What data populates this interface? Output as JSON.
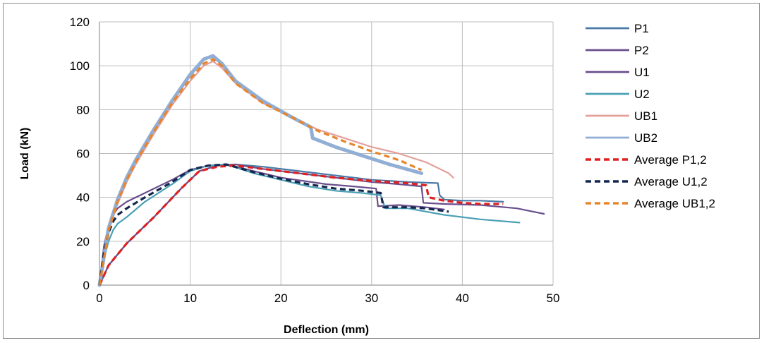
{
  "chart_data": {
    "type": "line",
    "title": "",
    "xlabel": "Deflection (mm)",
    "ylabel": "Load (kN)",
    "xlim": [
      0,
      50
    ],
    "ylim": [
      0,
      120
    ],
    "xticks": [
      0,
      10,
      20,
      30,
      40,
      50
    ],
    "yticks": [
      0,
      20,
      40,
      60,
      80,
      100,
      120
    ],
    "grid": "vertical and horizontal major gridlines",
    "legend": "right",
    "series": [
      {
        "name": "P1",
        "color": "#4a7aa7",
        "dash": "solid",
        "x": [
          0,
          1,
          3,
          6,
          9,
          11,
          13,
          15,
          18,
          22,
          26,
          30,
          34,
          37.3,
          37.5,
          38,
          40,
          42,
          44.5
        ],
        "y": [
          0,
          9,
          19,
          31,
          44,
          52,
          54.5,
          55,
          54,
          52,
          50,
          48,
          47,
          46.5,
          41,
          39,
          38.5,
          38.5,
          38
        ]
      },
      {
        "name": "P2",
        "color": "#6a4f8c",
        "dash": "solid",
        "x": [
          0,
          1,
          3,
          6,
          9,
          11,
          13,
          15,
          18,
          22,
          26,
          30,
          33,
          35.5,
          35.7,
          38,
          42,
          46,
          49
        ],
        "y": [
          0,
          9,
          19,
          31,
          44,
          52,
          54.5,
          55,
          53,
          51,
          49,
          47,
          46,
          45,
          37.5,
          37,
          36.5,
          35,
          32.5
        ]
      },
      {
        "name": "U1",
        "color": "#6a4f8c",
        "dash": "solid",
        "x": [
          0,
          0.5,
          1,
          1.5,
          2,
          3,
          5,
          8,
          10,
          12,
          14,
          17,
          20,
          25,
          28,
          30.5,
          30.7,
          33,
          36,
          38
        ],
        "y": [
          0,
          18,
          27,
          32,
          35,
          38,
          42,
          48,
          52.5,
          54.5,
          55,
          52,
          49,
          46,
          45,
          44,
          36,
          36.5,
          35.5,
          34.5
        ]
      },
      {
        "name": "U2",
        "color": "#4aa0b5",
        "dash": "solid",
        "x": [
          0,
          0.5,
          1,
          1.5,
          2,
          3,
          5,
          8,
          10,
          12,
          14,
          17,
          20,
          23,
          26,
          29,
          31,
          31.5,
          34,
          38,
          42,
          46.3
        ],
        "y": [
          0,
          12,
          20,
          25,
          28,
          31,
          38,
          46,
          52,
          54.5,
          55,
          51,
          48,
          45,
          43,
          42,
          41,
          35,
          35,
          32,
          30,
          28.5
        ]
      },
      {
        "name": "UB1",
        "color": "#e3a09b",
        "dash": "solid",
        "x": [
          0,
          0.5,
          1,
          2,
          3,
          4,
          6,
          8,
          10,
          11.5,
          12.5,
          13.5,
          15,
          18,
          21,
          24,
          27,
          30,
          33,
          36,
          38.5,
          39
        ],
        "y": [
          0,
          12,
          25,
          37,
          47,
          55,
          69,
          82,
          93,
          100,
          102,
          99,
          92,
          83,
          77,
          71,
          67,
          63,
          60,
          56,
          51,
          49
        ]
      },
      {
        "name": "UB2",
        "color": "#91aed4",
        "dash": "solid",
        "x": [
          0,
          0.5,
          1,
          2,
          3,
          4,
          6,
          8,
          10,
          11.5,
          12.5,
          13.5,
          15,
          18,
          21,
          23.3,
          23.5,
          26,
          29,
          32,
          35.5
        ],
        "y": [
          0,
          13,
          26,
          39,
          49,
          57,
          71,
          84,
          96,
          103,
          104.5,
          101,
          93,
          84,
          77,
          72,
          67,
          63,
          59,
          55,
          51
        ]
      },
      {
        "name": "Average P1,2",
        "color": "#e02020",
        "dash": "dashed",
        "x": [
          0,
          1,
          3,
          6,
          9,
          11,
          13,
          15,
          18,
          22,
          26,
          30,
          34,
          36,
          36.3,
          38,
          40,
          42,
          44.5
        ],
        "y": [
          0,
          9,
          19,
          31,
          44,
          52,
          54,
          54.5,
          53,
          51,
          49,
          47.5,
          46.5,
          45.5,
          40,
          38.5,
          37.5,
          37,
          37
        ]
      },
      {
        "name": "Average U1,2",
        "color": "#14284f",
        "dash": "dashed",
        "x": [
          0,
          0.5,
          1,
          1.5,
          2,
          3,
          5,
          8,
          10,
          12,
          14,
          17,
          20,
          23,
          26,
          29,
          31,
          31.3,
          34,
          36,
          38.5
        ],
        "y": [
          0,
          15,
          24,
          29,
          32,
          35,
          40,
          47,
          52.5,
          54.5,
          55,
          51.5,
          48.5,
          46,
          44,
          43,
          42,
          35.5,
          35.5,
          35,
          33.5
        ]
      },
      {
        "name": "Average UB1,2",
        "color": "#e8852b",
        "dash": "dashed",
        "x": [
          0,
          0.5,
          1,
          2,
          3,
          4,
          6,
          8,
          10,
          11.5,
          12.5,
          13.5,
          15,
          18,
          21,
          24,
          27,
          30,
          33,
          35.5
        ],
        "y": [
          0,
          12,
          25,
          38,
          48,
          56,
          70,
          83,
          94,
          101,
          103,
          100,
          92,
          83,
          77,
          70.5,
          65.5,
          61,
          57,
          52.5
        ]
      }
    ]
  }
}
